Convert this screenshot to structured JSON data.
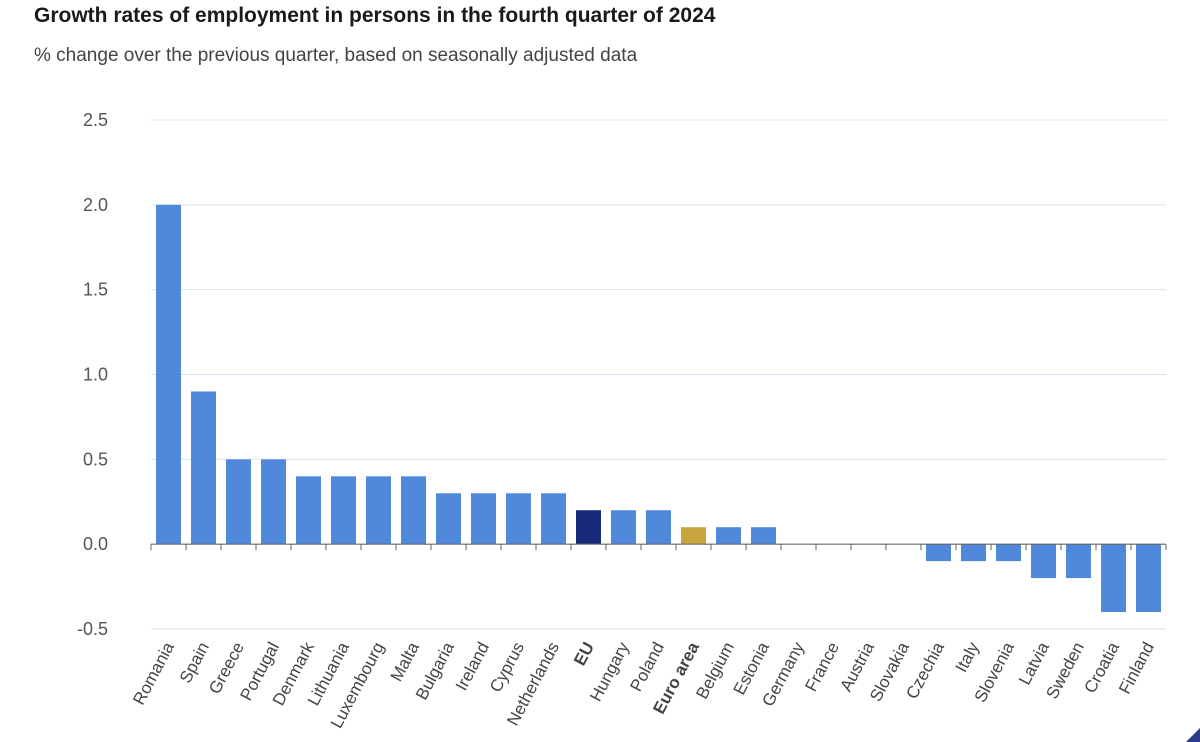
{
  "header": {
    "title": "Growth rates of employment in persons in the fourth quarter of 2024",
    "subtitle": "% change over the previous quarter, based on seasonally adjusted data"
  },
  "chart_data": {
    "type": "bar",
    "title": "Growth rates of employment in persons in the fourth quarter of 2024",
    "subtitle": "% change over the previous quarter, based on seasonally adjusted data",
    "xlabel": "",
    "ylabel": "",
    "ylim": [
      -0.5,
      2.5
    ],
    "yticks": [
      2.5,
      2.0,
      1.5,
      1.0,
      0.5,
      0.0,
      -0.5
    ],
    "ytick_labels": [
      "2.5",
      "2.0",
      "1.5",
      "1.0",
      "0.5",
      "0.0",
      "-0.5"
    ],
    "grid": true,
    "colors": {
      "default": "#5088dc",
      "eu": "#172a7a",
      "euro_area": "#c8a43c",
      "grid": "#d6e4f2",
      "axis": "#666666"
    },
    "categories": [
      "Romania",
      "Spain",
      "Greece",
      "Portugal",
      "Denmark",
      "Lithuania",
      "Luxembourg",
      "Malta",
      "Bulgaria",
      "Ireland",
      "Cyprus",
      "Netherlands",
      "EU",
      "Hungary",
      "Poland",
      "Euro area",
      "Belgium",
      "Estonia",
      "Germany",
      "France",
      "Austria",
      "Slovakia",
      "Czechia",
      "Italy",
      "Slovenia",
      "Latvia",
      "Sweden",
      "Croatia",
      "Finland"
    ],
    "highlight": {
      "EU": "eu",
      "Euro area": "euro_area"
    },
    "bold_categories": [
      "EU",
      "Euro area"
    ],
    "values": [
      2.0,
      0.9,
      0.5,
      0.5,
      0.4,
      0.4,
      0.4,
      0.4,
      0.3,
      0.3,
      0.3,
      0.3,
      0.2,
      0.2,
      0.2,
      0.1,
      0.1,
      0.1,
      0.0,
      0.0,
      0.0,
      0.0,
      -0.1,
      -0.1,
      -0.1,
      -0.2,
      -0.2,
      -0.4,
      -0.4
    ]
  }
}
